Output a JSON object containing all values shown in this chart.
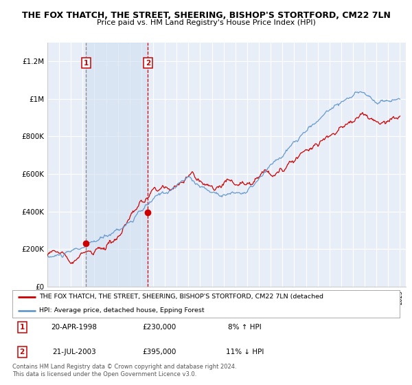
{
  "title": "THE FOX THATCH, THE STREET, SHEERING, BISHOP'S STORTFORD, CM22 7LN",
  "subtitle": "Price paid vs. HM Land Registry's House Price Index (HPI)",
  "ylim": [
    0,
    1300000
  ],
  "yticks": [
    0,
    200000,
    400000,
    600000,
    800000,
    1000000,
    1200000
  ],
  "ytick_labels": [
    "£0",
    "£200K",
    "£400K",
    "£600K",
    "£800K",
    "£1M",
    "£1.2M"
  ],
  "background_color": "#ffffff",
  "plot_bg_color": "#e8eef8",
  "grid_color": "#ffffff",
  "sale1": {
    "date_num": 1998.3,
    "price": 230000,
    "label": "1"
  },
  "sale2": {
    "date_num": 2003.55,
    "price": 395000,
    "label": "2"
  },
  "legend_line1": "THE FOX THATCH, THE STREET, SHEERING, BISHOP'S STORTFORD, CM22 7LN (detached",
  "legend_line2": "HPI: Average price, detached house, Epping Forest",
  "footnote": "Contains HM Land Registry data © Crown copyright and database right 2024.\nThis data is licensed under the Open Government Licence v3.0.",
  "table_rows": [
    {
      "num": "1",
      "date": "20-APR-1998",
      "price": "£230,000",
      "hpi": "8% ↑ HPI"
    },
    {
      "num": "2",
      "date": "21-JUL-2003",
      "price": "£395,000",
      "hpi": "11% ↓ HPI"
    }
  ],
  "red_color": "#cc0000",
  "blue_color": "#6699cc",
  "shade_color": "#d0dff0"
}
